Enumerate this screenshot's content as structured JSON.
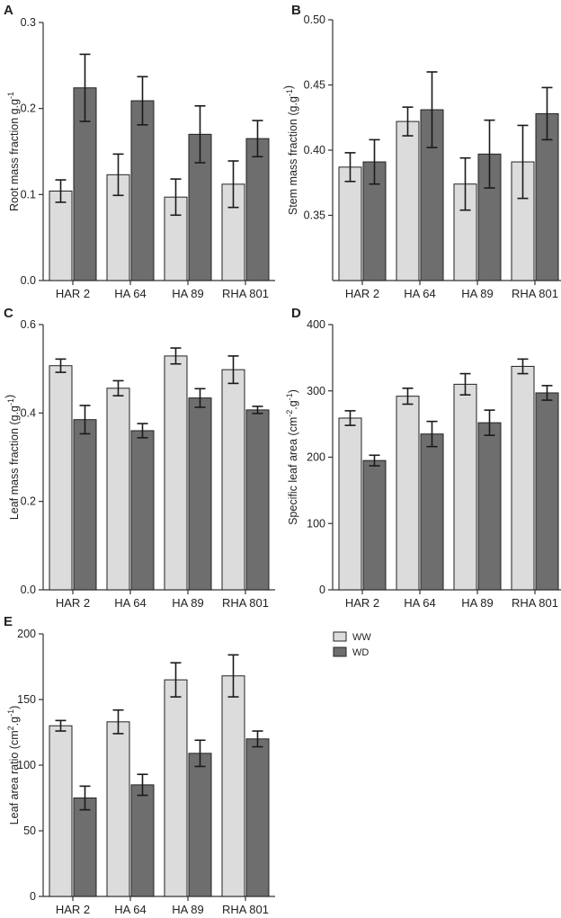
{
  "legend": {
    "ww_label": "WW",
    "wd_label": "WD",
    "ww_color": "#dcdcdc",
    "wd_color": "#6e6e6e"
  },
  "chart_data": [
    {
      "type": "bar",
      "panel": "A",
      "title": "",
      "xlabel": "",
      "ylabel": "Root mass fraction g.g",
      "ylabel_sup": "-1",
      "categories": [
        "HAR 2",
        "HA 64",
        "HA 89",
        "RHA 801"
      ],
      "ylim": [
        0,
        0.3
      ],
      "yticks": [
        0.0,
        0.1,
        0.2,
        0.3
      ],
      "ytick_labels": [
        "0.0",
        "0.1",
        "0.2",
        "0.3"
      ],
      "series": [
        {
          "name": "WW",
          "values": [
            0.104,
            0.123,
            0.097,
            0.112
          ],
          "errors": [
            0.013,
            0.024,
            0.021,
            0.027
          ]
        },
        {
          "name": "WD",
          "values": [
            0.224,
            0.209,
            0.17,
            0.165
          ],
          "errors": [
            0.039,
            0.028,
            0.033,
            0.021
          ]
        }
      ]
    },
    {
      "type": "bar",
      "panel": "B",
      "title": "",
      "xlabel": "",
      "ylabel": "Stem mass fraction (g.g",
      "ylabel_sup": "-1",
      "ylabel_end": ")",
      "categories": [
        "HAR 2",
        "HA 64",
        "HA 89",
        "RHA 801"
      ],
      "ylim": [
        0.3,
        0.5
      ],
      "yticks": [
        0.35,
        0.4,
        0.45,
        0.5
      ],
      "ytick_labels": [
        "0.35",
        "0.40",
        "0.45",
        "0.50"
      ],
      "series": [
        {
          "name": "WW",
          "values": [
            0.387,
            0.422,
            0.374,
            0.391
          ],
          "errors": [
            0.011,
            0.011,
            0.02,
            0.028
          ]
        },
        {
          "name": "WD",
          "values": [
            0.391,
            0.431,
            0.397,
            0.428
          ],
          "errors": [
            0.017,
            0.029,
            0.026,
            0.02
          ]
        }
      ]
    },
    {
      "type": "bar",
      "panel": "C",
      "title": "",
      "xlabel": "",
      "ylabel": "Leaf mass fraction (g.g",
      "ylabel_sup": "-1",
      "ylabel_end": ")",
      "categories": [
        "HAR 2",
        "HA 64",
        "HA 89",
        "RHA 801"
      ],
      "ylim": [
        0,
        0.6
      ],
      "yticks": [
        0.0,
        0.2,
        0.4,
        0.6
      ],
      "ytick_labels": [
        "0.0",
        "0.2",
        "0.4",
        "0.6"
      ],
      "series": [
        {
          "name": "WW",
          "values": [
            0.507,
            0.456,
            0.529,
            0.498
          ],
          "errors": [
            0.015,
            0.017,
            0.018,
            0.031
          ]
        },
        {
          "name": "WD",
          "values": [
            0.385,
            0.36,
            0.434,
            0.407
          ],
          "errors": [
            0.032,
            0.016,
            0.021,
            0.008
          ]
        }
      ]
    },
    {
      "type": "bar",
      "panel": "D",
      "title": "",
      "xlabel": "",
      "ylabel": "Specific leaf area (cm",
      "ylabel_sup": "-2",
      "ylabel_mid": ".g",
      "ylabel_sup2": "-1",
      "ylabel_end": ")",
      "categories": [
        "HAR 2",
        "HA 64",
        "HA 89",
        "RHA 801"
      ],
      "ylim": [
        0,
        400
      ],
      "yticks": [
        0,
        100,
        200,
        300,
        400
      ],
      "ytick_labels": [
        "0",
        "100",
        "200",
        "300",
        "400"
      ],
      "series": [
        {
          "name": "WW",
          "values": [
            259,
            292,
            310,
            337
          ],
          "errors": [
            11,
            12,
            16,
            11
          ]
        },
        {
          "name": "WD",
          "values": [
            195,
            235,
            252,
            297
          ],
          "errors": [
            8,
            19,
            19,
            11
          ]
        }
      ]
    },
    {
      "type": "bar",
      "panel": "E",
      "title": "",
      "xlabel": "",
      "ylabel": "Leaf area ratio (cm",
      "ylabel_sup": "2",
      "ylabel_mid": ".g",
      "ylabel_sup2": "-1",
      "ylabel_end": ")",
      "categories": [
        "HAR 2",
        "HA 64",
        "HA 89",
        "RHA 801"
      ],
      "ylim": [
        0,
        200
      ],
      "yticks": [
        0,
        50,
        100,
        150,
        200
      ],
      "ytick_labels": [
        "0",
        "50",
        "100",
        "150",
        "200"
      ],
      "series": [
        {
          "name": "WW",
          "values": [
            130,
            133,
            165,
            168
          ],
          "errors": [
            4,
            9,
            13,
            16
          ]
        },
        {
          "name": "WD",
          "values": [
            75,
            85,
            109,
            120
          ],
          "errors": [
            9,
            8,
            10,
            6
          ]
        }
      ]
    }
  ]
}
